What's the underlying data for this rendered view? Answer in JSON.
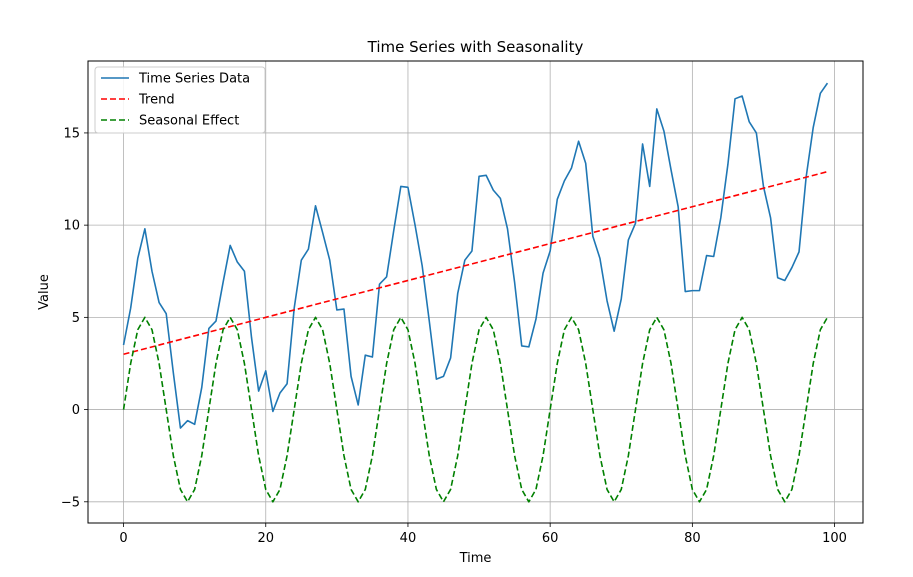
{
  "chart_data": {
    "type": "line",
    "title": "Time Series with Seasonality",
    "xlabel": "Time",
    "ylabel": "Value",
    "xlim": [
      -5,
      104
    ],
    "ylim": [
      -6.15,
      18.9
    ],
    "xticks": [
      0,
      20,
      40,
      60,
      80,
      100
    ],
    "yticks": [
      -5,
      0,
      5,
      10,
      15
    ],
    "grid": true,
    "legend": "top-left",
    "colors": {
      "Time Series Data": "#1f77b4",
      "Trend": "#ff0000",
      "Seasonal Effect": "#008000"
    },
    "series": [
      {
        "name": "Time Series Data",
        "style": "solid",
        "x": [
          0,
          1,
          2,
          3,
          4,
          5,
          6,
          7,
          8,
          9,
          10,
          11,
          12,
          13,
          14,
          15,
          16,
          17,
          18,
          19,
          20,
          21,
          22,
          23,
          24,
          25,
          26,
          27,
          28,
          29,
          30,
          31,
          32,
          33,
          34,
          35,
          36,
          37,
          38,
          39,
          40,
          41,
          42,
          43,
          44,
          45,
          46,
          47,
          48,
          49,
          50,
          51,
          52,
          53,
          54,
          55,
          56,
          57,
          58,
          59,
          60,
          61,
          62,
          63,
          64,
          65,
          66,
          67,
          68,
          69,
          70,
          71,
          72,
          73,
          74,
          75,
          76,
          77,
          78,
          79,
          80,
          81,
          82,
          83,
          84,
          85,
          86,
          87,
          88,
          89,
          90,
          91,
          92,
          93,
          94,
          95,
          96,
          97,
          98,
          99
        ],
        "values": [
          3.5,
          5.5,
          8.2,
          9.8,
          7.5,
          5.8,
          5.2,
          2.0,
          -1.0,
          -0.6,
          -0.8,
          1.2,
          4.4,
          4.8,
          6.9,
          8.9,
          8.0,
          7.5,
          3.9,
          1.0,
          2.1,
          -0.1,
          0.9,
          1.4,
          5.5,
          8.1,
          8.7,
          11.05,
          9.6,
          8.1,
          5.4,
          5.45,
          1.8,
          0.25,
          2.95,
          2.85,
          6.8,
          7.2,
          9.7,
          12.1,
          12.05,
          10.0,
          7.8,
          4.8,
          1.65,
          1.8,
          2.8,
          6.3,
          8.1,
          8.6,
          12.65,
          12.7,
          11.9,
          11.45,
          9.8,
          6.9,
          3.45,
          3.4,
          4.9,
          7.4,
          8.6,
          11.4,
          12.4,
          13.1,
          14.55,
          13.35,
          9.4,
          8.2,
          5.9,
          4.25,
          6.0,
          9.2,
          10.1,
          14.4,
          12.1,
          16.3,
          15.1,
          13.0,
          11.0,
          6.4,
          6.45,
          6.45,
          8.35,
          8.3,
          10.4,
          13.3,
          16.85,
          17.0,
          15.6,
          15.0,
          12.1,
          10.4,
          7.15,
          7.0,
          7.7,
          8.55,
          12.6,
          15.3,
          17.15,
          17.7
        ]
      },
      {
        "name": "Trend",
        "style": "dashed",
        "x": [
          0,
          99
        ],
        "values": [
          3.0,
          12.9
        ]
      },
      {
        "name": "Seasonal Effect",
        "style": "dashed",
        "x": [
          0,
          1,
          2,
          3,
          4,
          5,
          6,
          7,
          8,
          9,
          10,
          11,
          12,
          13,
          14,
          15,
          16,
          17,
          18,
          19,
          20,
          21,
          22,
          23,
          24,
          25,
          26,
          27,
          28,
          29,
          30,
          31,
          32,
          33,
          34,
          35,
          36,
          37,
          38,
          39,
          40,
          41,
          42,
          43,
          44,
          45,
          46,
          47,
          48,
          49,
          50,
          51,
          52,
          53,
          54,
          55,
          56,
          57,
          58,
          59,
          60,
          61,
          62,
          63,
          64,
          65,
          66,
          67,
          68,
          69,
          70,
          71,
          72,
          73,
          74,
          75,
          76,
          77,
          78,
          79,
          80,
          81,
          82,
          83,
          84,
          85,
          86,
          87,
          88,
          89,
          90,
          91,
          92,
          93,
          94,
          95,
          96,
          97,
          98,
          99
        ],
        "values": [
          0,
          2.5,
          4.33,
          5,
          4.33,
          2.5,
          0,
          -2.5,
          -4.33,
          -5,
          -4.33,
          -2.5,
          0,
          2.5,
          4.33,
          5,
          4.33,
          2.5,
          0,
          -2.5,
          -4.33,
          -5,
          -4.33,
          -2.5,
          0,
          2.5,
          4.33,
          5,
          4.33,
          2.5,
          0,
          -2.5,
          -4.33,
          -5,
          -4.33,
          -2.5,
          0,
          2.5,
          4.33,
          5,
          4.33,
          2.5,
          0,
          -2.5,
          -4.33,
          -5,
          -4.33,
          -2.5,
          0,
          2.5,
          4.33,
          5,
          4.33,
          2.5,
          0,
          -2.5,
          -4.33,
          -5,
          -4.33,
          -2.5,
          0,
          2.5,
          4.33,
          5,
          4.33,
          2.5,
          0,
          -2.5,
          -4.33,
          -5,
          -4.33,
          -2.5,
          0,
          2.5,
          4.33,
          5,
          4.33,
          2.5,
          0,
          -2.5,
          -4.33,
          -5,
          -4.33,
          -2.5,
          0,
          2.5,
          4.33,
          5,
          4.33,
          2.5,
          0,
          -2.5,
          -4.33,
          -5,
          -4.33,
          -2.5,
          0,
          2.5,
          4.33,
          5
        ]
      }
    ]
  }
}
